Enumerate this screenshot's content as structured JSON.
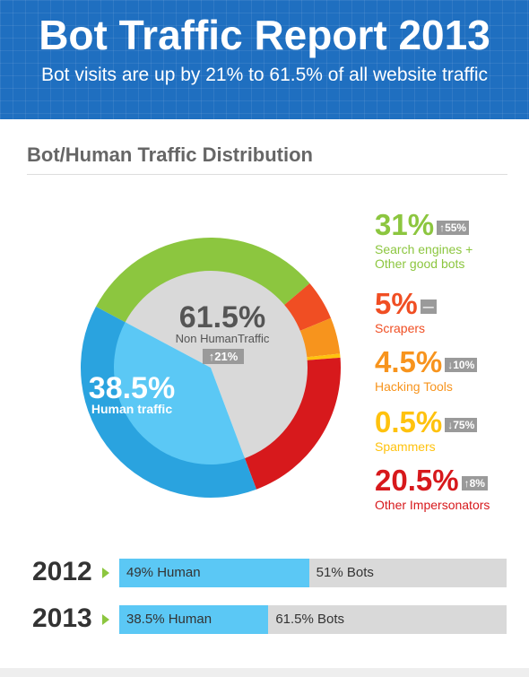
{
  "header": {
    "title": "Bot Traffic Report 2013",
    "subtitle": "Bot visits are up by 21% to 61.5% of all website traffic"
  },
  "chart_data": [
    {
      "type": "pie",
      "title": "Bot/Human Traffic Distribution",
      "categories": [
        "Search engines + Other good bots",
        "Scrapers",
        "Hacking Tools",
        "Spammers",
        "Other Impersonators"
      ],
      "values": [
        31,
        5,
        4.5,
        0.5,
        20.5
      ],
      "value_labels": [
        "31%",
        "5%",
        "4.5%",
        "0.5%",
        "20.5%"
      ],
      "changes": [
        "↑55%",
        "—",
        "↓10%",
        "↓75%",
        "↑8%"
      ],
      "colors": [
        "#8cc63f",
        "#f04e23",
        "#f7941d",
        "#ffc20e",
        "#d7191c"
      ],
      "inner": {
        "categories": [
          "Non HumanTraffic",
          "Human traffic"
        ],
        "values": [
          61.5,
          38.5
        ],
        "value_labels": [
          "61.5%",
          "38.5%"
        ],
        "change": "↑21%",
        "colors": [
          "#d9d9d9",
          "#5bc8f5"
        ],
        "ring_colors": [
          null,
          "#2aa3df"
        ]
      }
    },
    {
      "type": "stacked-bar",
      "categories": [
        "2012",
        "2013"
      ],
      "xlim": [
        0,
        100
      ],
      "series": [
        {
          "name": "Human",
          "color": "#5bc8f5",
          "values": [
            49,
            38.5
          ],
          "value_labels": [
            "49% Human",
            "38.5% Human"
          ]
        },
        {
          "name": "Bots",
          "color": "#d9d9d9",
          "values": [
            51,
            61.5
          ],
          "value_labels": [
            "51% Bots",
            "61.5% Bots"
          ]
        }
      ]
    }
  ]
}
